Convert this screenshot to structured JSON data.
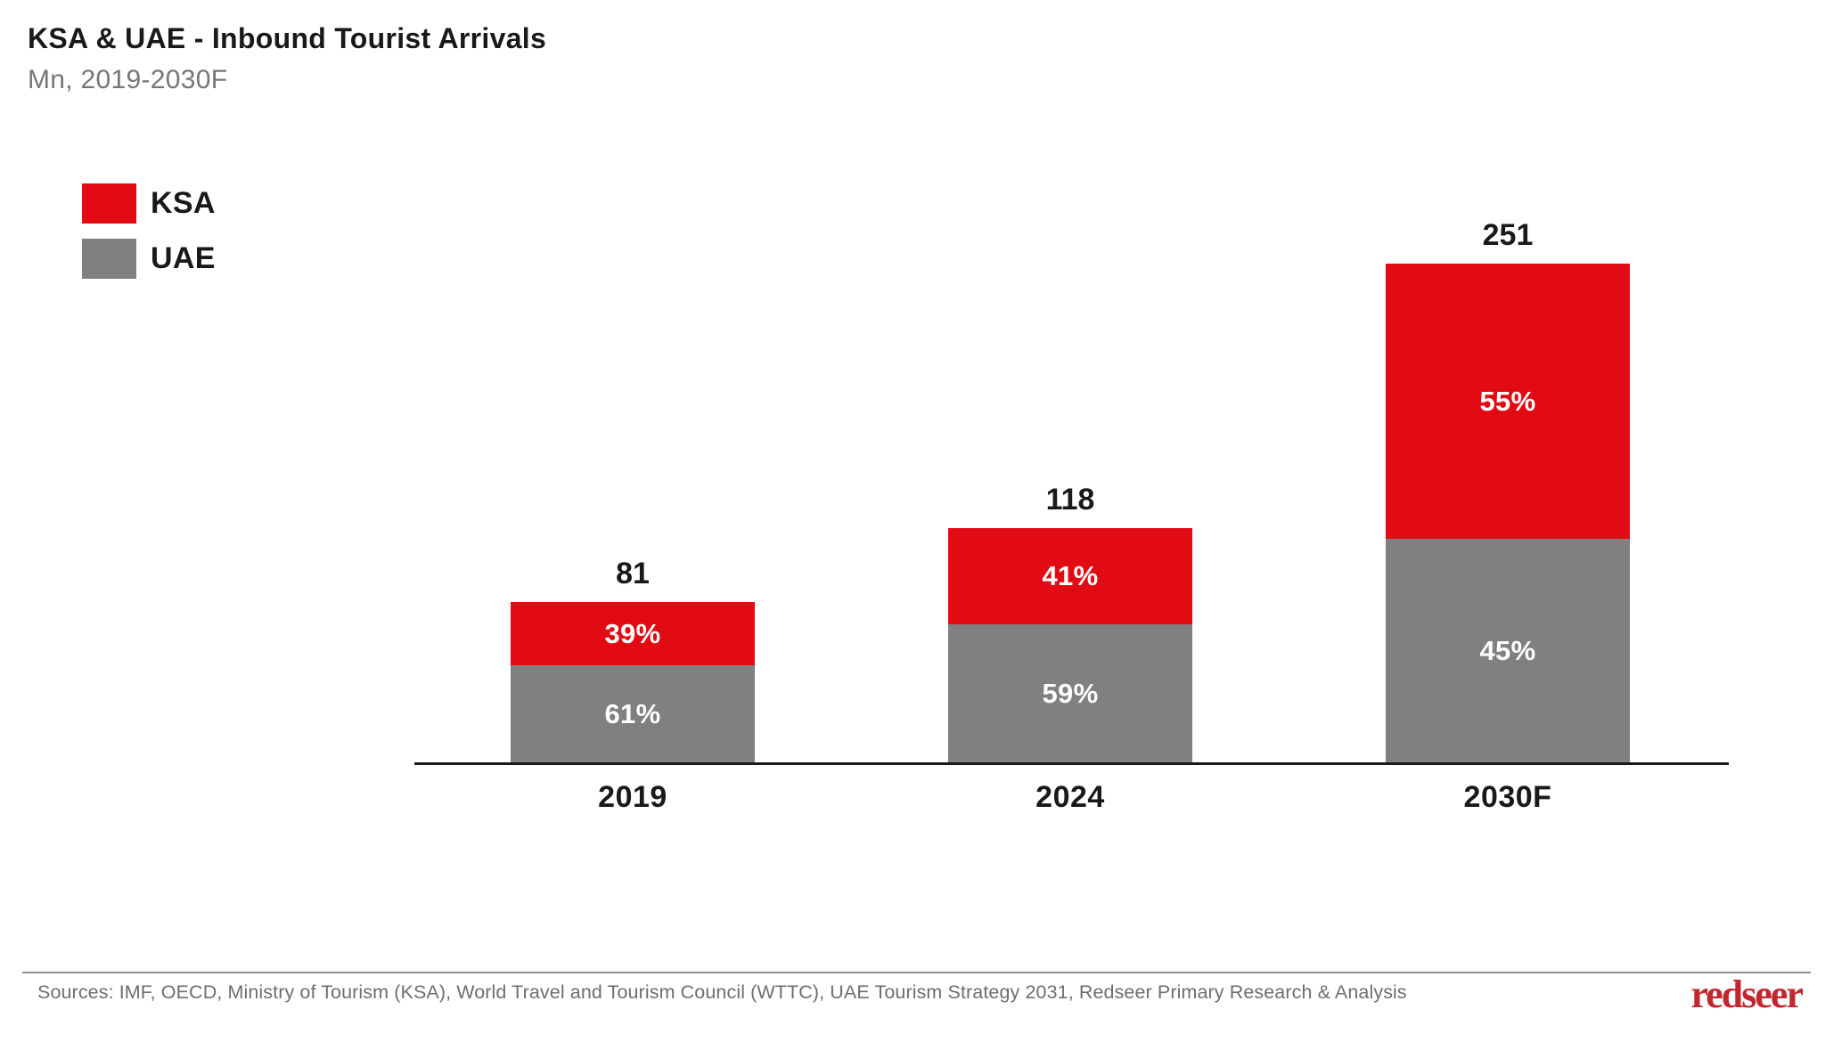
{
  "chart_data": {
    "type": "bar",
    "stacked": true,
    "title": "KSA & UAE - Inbound Tourist Arrivals",
    "subtitle": "Mn, 2019-2030F",
    "unit": "Mn",
    "categories": [
      "2019",
      "2024",
      "2030F"
    ],
    "totals": [
      81,
      118,
      251
    ],
    "series": [
      {
        "name": "KSA",
        "color": "#e30b13",
        "share_pct": [
          39,
          41,
          55
        ],
        "labels": [
          "39%",
          "41%",
          "55%"
        ]
      },
      {
        "name": "UAE",
        "color": "#808080",
        "share_pct": [
          61,
          59,
          45
        ],
        "labels": [
          "61%",
          "59%",
          "45%"
        ]
      }
    ],
    "legend_position": "top-left",
    "grid": false,
    "axis_colors": {
      "baseline": "#1a1a1a"
    }
  },
  "footer": {
    "sources": "Sources: IMF, OECD, Ministry of Tourism (KSA), World Travel and Tourism Council (WTTC), UAE Tourism Strategy 2031, Redseer Primary Research & Analysis",
    "logo_text": "redseer",
    "logo_color": "#c1282e"
  }
}
